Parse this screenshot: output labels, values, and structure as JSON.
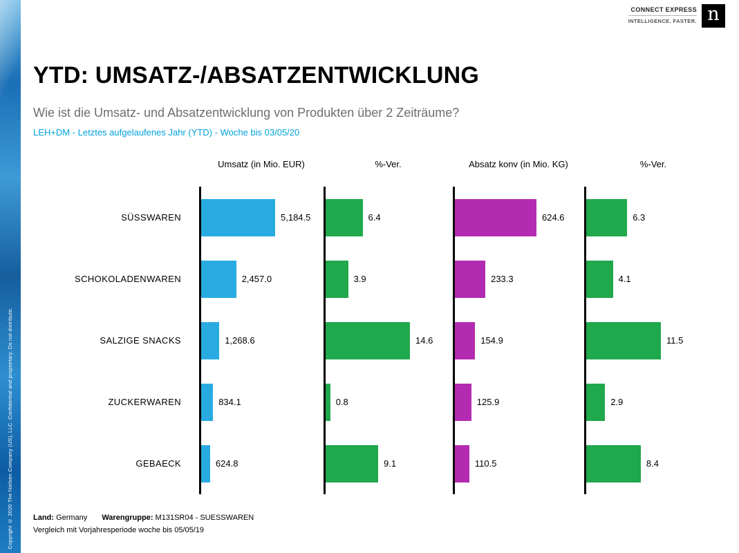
{
  "branding": {
    "tagline_line1": "CONNECT EXPRESS",
    "tagline_line2": "INTELLIGENCE. FASTER.",
    "logo_letter": "n"
  },
  "sidebar": {
    "copyright": "Copyright © 2020 The Nielsen Company (US), LLC. Confidential and proprietary. Do not distribute."
  },
  "header": {
    "title": "YTD: UMSATZ-/ABSATZENTWICKLUNG",
    "question": "Wie ist die Umsatz- und Absatzentwicklung von Produkten über 2 Zeiträume?",
    "scope": "LEH+DM - Letztes aufgelaufenes Jahr (YTD) - Woche bis 03/05/20"
  },
  "chart_data": {
    "type": "bar",
    "orientation": "horizontal",
    "grid": false,
    "legend": "none",
    "axis_color": "#000000",
    "categories": [
      "SÜSSWAREN",
      "SCHOKOLADENWAREN",
      "SALZIGE SNACKS",
      "ZUCKERWAREN",
      "GEBAECK"
    ],
    "series": [
      {
        "name": "Umsatz (in Mio. EUR)",
        "color": "#29ABE2",
        "values": [
          5184.5,
          2457.0,
          1268.6,
          834.1,
          624.8
        ],
        "labels": [
          "5,184.5",
          "2,457.0",
          "1,268.6",
          "834.1",
          "624.8"
        ]
      },
      {
        "name": "%-Ver.",
        "color": "#1FA84C",
        "values": [
          6.4,
          3.9,
          14.6,
          0.8,
          9.1
        ],
        "labels": [
          "6.4",
          "3.9",
          "14.6",
          "0.8",
          "9.1"
        ]
      },
      {
        "name": "Absatz konv (in Mio. KG)",
        "color": "#B32BB0",
        "values": [
          624.6,
          233.3,
          154.9,
          125.9,
          110.5
        ],
        "labels": [
          "624.6",
          "233.3",
          "154.9",
          "125.9",
          "110.5"
        ]
      },
      {
        "name": "%-Ver.",
        "color": "#1FA84C",
        "values": [
          6.3,
          4.1,
          11.5,
          2.9,
          8.4
        ],
        "labels": [
          "6.3",
          "4.1",
          "11.5",
          "2.9",
          "8.4"
        ]
      }
    ]
  },
  "colors": {
    "accent_blue": "#29ABE2",
    "accent_green": "#1FA84C",
    "accent_magenta": "#B32BB0",
    "scope_text": "#00A2DC",
    "question_text": "#6D6E71"
  },
  "footer": {
    "segments": [
      {
        "label": "Land:",
        "value": "Germany"
      },
      {
        "label": "Warengruppe:",
        "value": "M131SR04 - SUESSWAREN"
      }
    ],
    "line2": "Vergleich mit Vorjahresperiode woche bis 05/05/19"
  }
}
